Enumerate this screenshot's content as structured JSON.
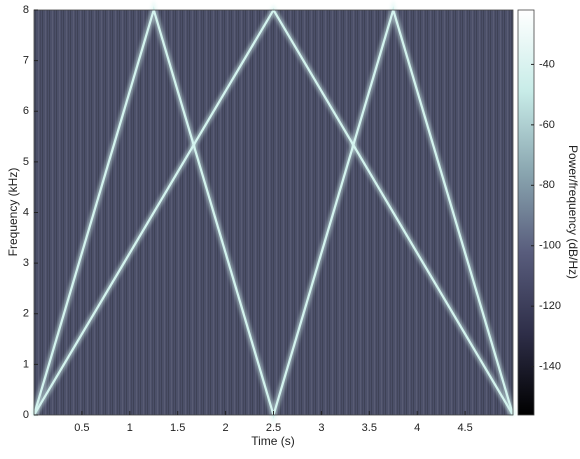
{
  "chart_data": {
    "type": "spectrogram",
    "xlabel": "Time (s)",
    "ylabel": "Frequency (kHz)",
    "xlim": [
      0,
      5
    ],
    "xticks": [
      0.5,
      1,
      1.5,
      2,
      2.5,
      3,
      3.5,
      4,
      4.5
    ],
    "ylim": [
      0,
      8
    ],
    "yticks": [
      0,
      1,
      2,
      3,
      4,
      5,
      6,
      7,
      8
    ],
    "background_color": "#4c5069",
    "series": [
      {
        "color": "#d4f4ef",
        "x": [
          0,
          1.25,
          2.5,
          3.75,
          5
        ],
        "values": [
          0,
          8,
          0,
          8,
          0
        ]
      },
      {
        "color": "#d4f4ef",
        "x": [
          0,
          2.5,
          5
        ],
        "values": [
          0,
          8,
          0
        ]
      }
    ],
    "colorbar": {
      "label": "Power/frequency (dB/Hz)",
      "clim": [
        -156,
        -22
      ],
      "ticks": [
        -140,
        -120,
        -100,
        -80,
        -60,
        -40
      ],
      "colormap": [
        "#000000",
        "#2e2e48",
        "#585c7c",
        "#8aa6b0",
        "#c8ece8",
        "#ffffff"
      ]
    }
  }
}
